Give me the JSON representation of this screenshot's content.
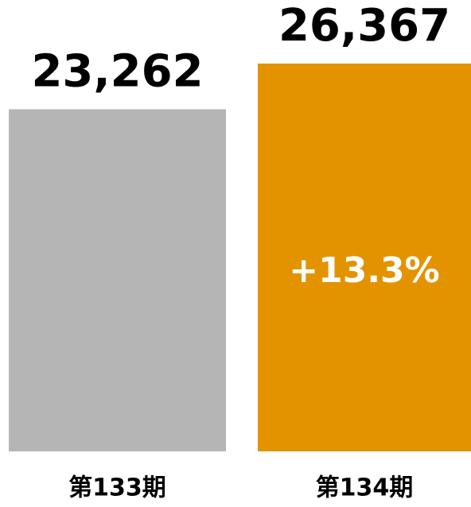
{
  "chart_data": {
    "type": "bar",
    "categories": [
      "第133期",
      "第134期"
    ],
    "values": [
      23262,
      26367
    ],
    "value_labels": [
      "23,262",
      "26,367"
    ],
    "colors": [
      "#b5b5b5",
      "#e39300"
    ],
    "annotation": "+13.3%"
  }
}
